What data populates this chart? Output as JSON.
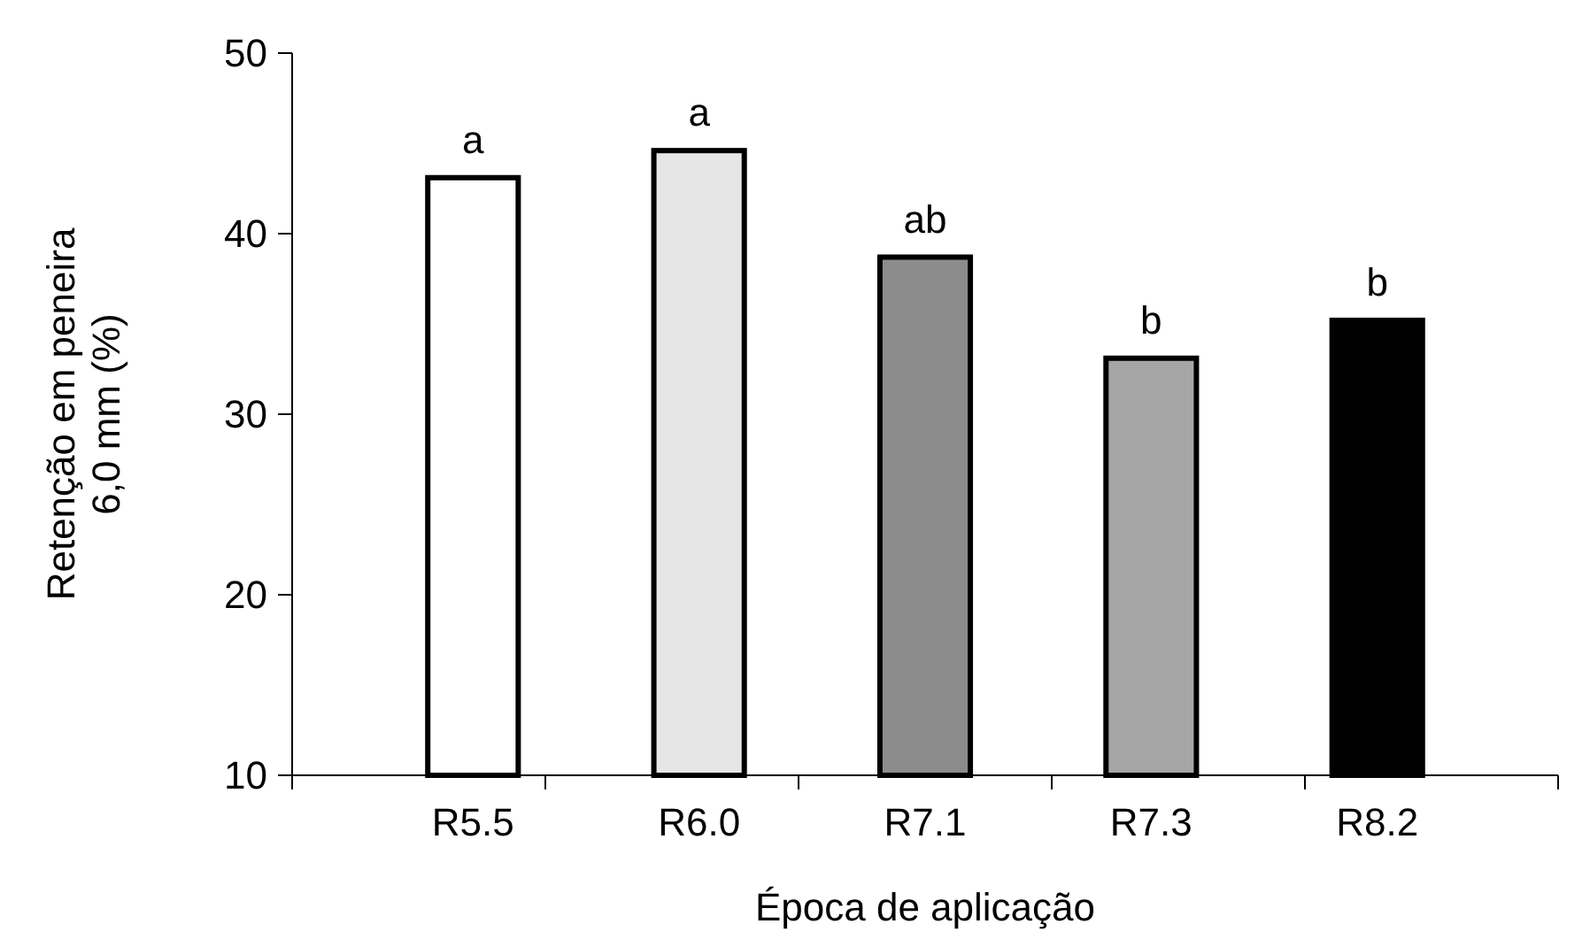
{
  "chart_data": {
    "type": "bar",
    "xlabel": "Época de aplicação",
    "ylabel": "Retenção em peneira\n6,0 mm (%)",
    "categories": [
      "R5.5",
      "R6.0",
      "R7.1",
      "R7.3",
      "R8.2"
    ],
    "values": [
      43.1,
      44.6,
      38.7,
      33.1,
      35.2
    ],
    "colors": [
      "#ffffff",
      "#e6e6e6",
      "#8c8c8c",
      "#a6a6a6",
      "#000000"
    ],
    "ylim": [
      10,
      50
    ],
    "yticks": [
      10,
      20,
      30,
      40,
      50
    ],
    "grid": false,
    "annotations": [
      {
        "text": "a",
        "x": "R5.5",
        "y": 43.1
      },
      {
        "text": "a",
        "x": "R6.0",
        "y": 44.6
      },
      {
        "text": "ab",
        "x": "R7.1",
        "y": 38.7
      },
      {
        "text": "b",
        "x": "R7.3",
        "y": 33.1
      },
      {
        "text": "b",
        "x": "R8.2",
        "y": 35.2
      }
    ]
  }
}
